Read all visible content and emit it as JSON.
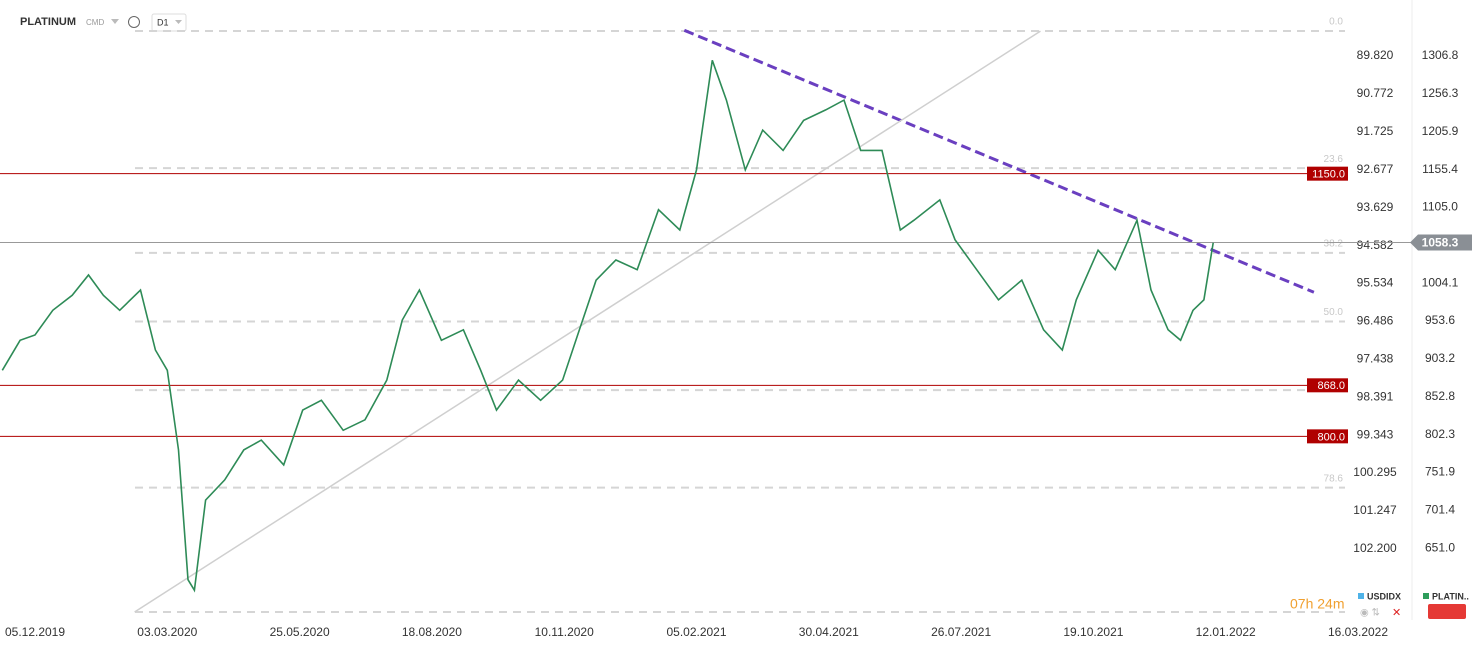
{
  "header": {
    "symbol": "PLATINUM",
    "market": "CMD",
    "interval": "D1"
  },
  "timer": "07h 24m",
  "chart_data": {
    "type": "line",
    "x": [
      "13.11.2019",
      "25.11.2019",
      "05.12.2019",
      "17.12.2019",
      "30.12.2019",
      "10.01.2020",
      "20.01.2020",
      "31.01.2020",
      "14.02.2020",
      "24.02.2020",
      "03.03.2020",
      "10.03.2020",
      "16.03.2020",
      "20.03.2020",
      "27.03.2020",
      "08.04.2020",
      "20.04.2020",
      "01.05.2020",
      "15.05.2020",
      "27.05.2020",
      "08.06.2020",
      "22.06.2020",
      "06.07.2020",
      "20.07.2020",
      "30.07.2020",
      "10.08.2020",
      "24.08.2020",
      "07.09.2020",
      "18.09.2020",
      "28.09.2020",
      "12.10.2020",
      "26.10.2020",
      "09.11.2020",
      "20.11.2020",
      "01.12.2020",
      "14.12.2020",
      "28.12.2020",
      "11.01.2021",
      "25.01.2021",
      "05.02.2021",
      "15.02.2021",
      "24.02.2021",
      "08.03.2021",
      "19.03.2021",
      "01.04.2021",
      "14.04.2021",
      "28.04.2021",
      "10.05.2021",
      "21.05.2021",
      "04.06.2021",
      "16.06.2021",
      "25.06.2021",
      "12.07.2021",
      "22.07.2021",
      "05.08.2021",
      "19.08.2021",
      "03.09.2021",
      "17.09.2021",
      "29.09.2021",
      "08.10.2021",
      "22.10.2021",
      "02.11.2021",
      "16.11.2021",
      "25.11.2021",
      "06.12.2021",
      "14.12.2021",
      "22.12.2021",
      "29.12.2021",
      "04.01.2022"
    ],
    "series": [
      {
        "color": "#2e8b57",
        "values": [
          888,
          928,
          935,
          968,
          988,
          1015,
          988,
          968,
          995,
          915,
          888,
          782,
          609,
          595,
          715,
          742,
          782,
          795,
          762,
          835,
          848,
          808,
          822,
          875,
          955,
          995,
          928,
          942,
          888,
          835,
          875,
          848,
          875,
          942,
          1008,
          1035,
          1022,
          1102,
          1075,
          1155,
          1301,
          1248,
          1155,
          1208,
          1181,
          1221,
          1235,
          1248,
          1181,
          1181,
          1075,
          1088,
          1115,
          1062,
          1022,
          982,
          1008,
          942,
          915,
          982,
          1048,
          1022,
          1088,
          995,
          942,
          928,
          968,
          982,
          1058
        ]
      }
    ],
    "xticks": [
      "05.12.2019",
      "03.03.2020",
      "25.05.2020",
      "18.08.2020",
      "10.11.2020",
      "05.02.2021",
      "30.04.2021",
      "26.07.2021",
      "19.10.2021",
      "12.01.2022",
      "16.03.2022"
    ],
    "ylim": [
      555.3,
      1381.4
    ],
    "yticks": [
      1306.8,
      1256.3,
      1205.9,
      1155.4,
      {
        "value": 1105,
        "label": "1105.0"
      },
      1004.1,
      953.6,
      903.2,
      852.8,
      802.3,
      751.9,
      701.4,
      {
        "value": 651,
        "label": "651.0"
      }
    ],
    "y2lim": [
      103.987,
      88.413
    ],
    "y2ticks": [
      {
        "value": 89.82,
        "label": "89.820"
      },
      90.772,
      91.725,
      92.677,
      93.629,
      94.582,
      95.534,
      96.486,
      97.438,
      98.391,
      99.343,
      100.295,
      101.247,
      {
        "value": 102.2,
        "label": "102.200"
      }
    ],
    "levels": [
      {
        "value": 1150,
        "label": "1150.0"
      },
      {
        "value": 868,
        "label": "868.0"
      },
      {
        "value": 800,
        "label": "800.0"
      }
    ],
    "level_color": "#b00000",
    "current": {
      "value": 1058.3,
      "label": "1058.3"
    },
    "fibonacci": [
      {
        "value": 1340.1,
        "label": "0.0"
      },
      {
        "value": 1157.4,
        "label": "23.6"
      },
      {
        "value": 1044.4,
        "label": "38.2"
      },
      {
        "value": 953.0,
        "label": "50.0"
      },
      861.6,
      {
        "value": 731.6,
        "label": "78.6"
      },
      565.9
    ],
    "trendlines": [
      {
        "color": "#6a3fc0",
        "dashed": true,
        "from": {
          "x": "28.01.2021",
          "y": 1341
        },
        "to": {
          "x": "23.02.2022",
          "y": 992
        }
      },
      {
        "color": "#cfcfcf",
        "dashed": false,
        "from": {
          "x": "10.02.2020",
          "y": 566
        },
        "to": {
          "x": "15.09.2021",
          "y": 1340
        }
      }
    ],
    "legend": [
      {
        "name": "USDIDX",
        "color": "#4fb3e8"
      },
      {
        "name": "PLATIN..",
        "color": "#2e9d5b"
      }
    ]
  }
}
